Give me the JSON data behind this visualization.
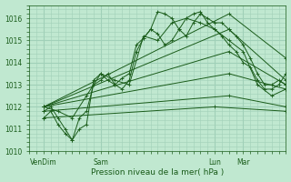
{
  "xlabel": "Pression niveau de la mer( hPa )",
  "background_color": "#c0e8d0",
  "plot_bg_color": "#c0e8d0",
  "grid_color": "#a0d0b8",
  "line_color": "#1a5c1a",
  "tick_label_color": "#1a5c1a",
  "ylim": [
    1010.0,
    1016.6
  ],
  "yticks": [
    1010,
    1011,
    1012,
    1013,
    1014,
    1015,
    1016
  ],
  "xlim": [
    0,
    108
  ],
  "xtick_positions": [
    6,
    30,
    78,
    90,
    108
  ],
  "xtick_labels": [
    "VenDim",
    "Sam",
    "Lun",
    "Mar",
    ""
  ],
  "figsize": [
    3.2,
    2.0
  ],
  "dpi": 100,
  "series": [
    {
      "x": [
        6,
        9,
        12,
        15,
        18,
        21,
        24,
        27,
        30,
        33,
        36,
        39,
        42,
        45,
        48,
        51,
        54,
        57,
        60,
        63,
        66,
        69,
        72,
        75,
        78,
        81,
        84,
        87,
        90,
        93,
        96,
        99,
        102,
        105,
        108
      ],
      "y": [
        1011.5,
        1011.8,
        1011.2,
        1010.8,
        1010.5,
        1011.5,
        1011.8,
        1013.0,
        1013.2,
        1013.5,
        1013.0,
        1012.8,
        1013.2,
        1014.5,
        1015.1,
        1015.5,
        1016.3,
        1016.2,
        1016.0,
        1015.5,
        1015.2,
        1015.8,
        1016.2,
        1016.0,
        1015.8,
        1015.8,
        1015.5,
        1015.2,
        1014.8,
        1014.2,
        1013.5,
        1013.0,
        1013.0,
        1013.2,
        1013.0
      ],
      "marker": "+"
    },
    {
      "x": [
        6,
        9,
        12,
        15,
        18,
        21,
        24,
        27,
        30,
        33,
        36,
        39,
        42,
        45,
        48,
        51,
        54,
        57,
        60,
        63,
        66,
        69,
        72,
        75,
        78,
        81,
        84,
        87,
        90,
        93,
        96,
        99,
        102,
        105,
        108
      ],
      "y": [
        1011.8,
        1012.0,
        1011.5,
        1011.0,
        1010.5,
        1011.0,
        1011.2,
        1013.2,
        1013.5,
        1013.2,
        1013.0,
        1013.3,
        1013.5,
        1014.8,
        1015.1,
        1015.5,
        1015.3,
        1014.8,
        1015.0,
        1015.5,
        1016.0,
        1016.2,
        1016.3,
        1015.8,
        1015.5,
        1015.2,
        1014.8,
        1014.5,
        1014.0,
        1013.8,
        1013.2,
        1012.8,
        1012.8,
        1013.0,
        1013.5
      ],
      "marker": "+"
    },
    {
      "x": [
        6,
        12,
        18,
        24,
        30,
        36,
        42,
        48,
        54,
        60,
        66,
        72,
        78,
        84,
        90,
        96,
        102,
        108
      ],
      "y": [
        1012.0,
        1011.8,
        1011.5,
        1012.5,
        1013.5,
        1013.2,
        1013.0,
        1015.2,
        1015.0,
        1015.8,
        1016.0,
        1015.8,
        1015.5,
        1015.0,
        1014.5,
        1013.0,
        1012.5,
        1012.8
      ],
      "marker": "+"
    },
    {
      "x": [
        6,
        84,
        108
      ],
      "y": [
        1012.0,
        1016.2,
        1014.2
      ],
      "marker": "+"
    },
    {
      "x": [
        6,
        84,
        108
      ],
      "y": [
        1012.0,
        1015.5,
        1013.2
      ],
      "marker": "+"
    },
    {
      "x": [
        6,
        84,
        108
      ],
      "y": [
        1012.0,
        1014.5,
        1013.0
      ],
      "marker": "+"
    },
    {
      "x": [
        6,
        84,
        108
      ],
      "y": [
        1012.0,
        1013.5,
        1012.8
      ],
      "marker": "+"
    },
    {
      "x": [
        6,
        84,
        108
      ],
      "y": [
        1011.8,
        1012.5,
        1012.0
      ],
      "marker": "+"
    },
    {
      "x": [
        6,
        78,
        108
      ],
      "y": [
        1011.5,
        1012.0,
        1011.8
      ],
      "marker": "+"
    }
  ],
  "line_width": 0.7,
  "marker_size": 2.5,
  "marker_edge_width": 0.6
}
